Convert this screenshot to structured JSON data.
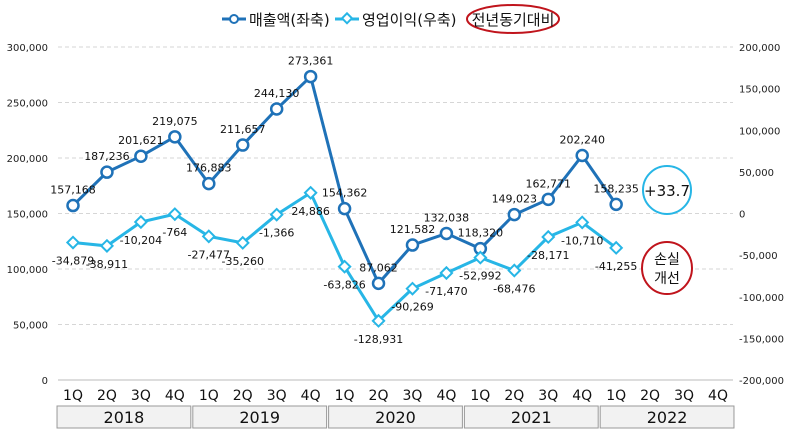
{
  "chart_data": {
    "type": "line",
    "legend": {
      "placement": "top",
      "items": [
        "매출액(좌축)",
        "영업이익(우축)"
      ],
      "note": "전년동기대비"
    },
    "years": [
      "2018",
      "2019",
      "2020",
      "2021",
      "2022"
    ],
    "quarters": [
      "1Q",
      "2Q",
      "3Q",
      "4Q",
      "1Q",
      "2Q",
      "3Q",
      "4Q",
      "1Q",
      "2Q",
      "3Q",
      "4Q",
      "1Q",
      "2Q",
      "3Q",
      "4Q",
      "1Q",
      "2Q",
      "3Q",
      "4Q"
    ],
    "y_left": {
      "range": [
        0,
        300000
      ],
      "ticks": [
        "0",
        "50,000",
        "100,000",
        "150,000",
        "200,000",
        "250,000",
        "300,000"
      ]
    },
    "y_right": {
      "range": [
        -200000,
        200000
      ],
      "ticks": [
        "-200,000",
        "-150,000",
        "-100,000",
        "-50,000",
        "0",
        "50,000",
        "100,000",
        "150,000",
        "200,000"
      ]
    },
    "grid": true,
    "series": [
      {
        "name": "매출액(좌축)",
        "axis": "left",
        "color": "#1f72b8",
        "marker": "circle",
        "values": [
          157168,
          187236,
          201621,
          219075,
          176883,
          211657,
          244130,
          273361,
          154362,
          87062,
          121582,
          132038,
          118320,
          149023,
          162771,
          202240,
          158235
        ],
        "labels": [
          "157,168",
          "187,236",
          "201,621",
          "219,075",
          "176,883",
          "211,657",
          "244,130",
          "273,361",
          "154,362",
          "87,062",
          "121,582",
          "132,038",
          "118,320",
          "149,023",
          "162,771",
          "202,240",
          "158,235"
        ]
      },
      {
        "name": "영업이익(우축)",
        "axis": "right",
        "color": "#27b6e6",
        "marker": "diamond",
        "values": [
          -34879,
          -38911,
          -10204,
          -764,
          -27477,
          -35260,
          -1366,
          24886,
          -63826,
          -128931,
          -90269,
          -71470,
          -52992,
          -68476,
          -28171,
          -10710,
          -41255
        ],
        "labels": [
          "-34,879",
          "-38,911",
          "-10,204",
          "-764",
          "-27,477",
          "-35,260",
          "-1,366",
          "24,886",
          "-63,826",
          "-128,931",
          "-90,269",
          "-71,470",
          "-52,992",
          "-68,476",
          "-28,171",
          "-10,710",
          "-41,255"
        ]
      }
    ],
    "annotations": [
      {
        "text": "+33.7",
        "color": "#27b6e6"
      },
      {
        "lines": [
          "손실",
          "개선"
        ],
        "color": "#c0141c"
      }
    ]
  }
}
